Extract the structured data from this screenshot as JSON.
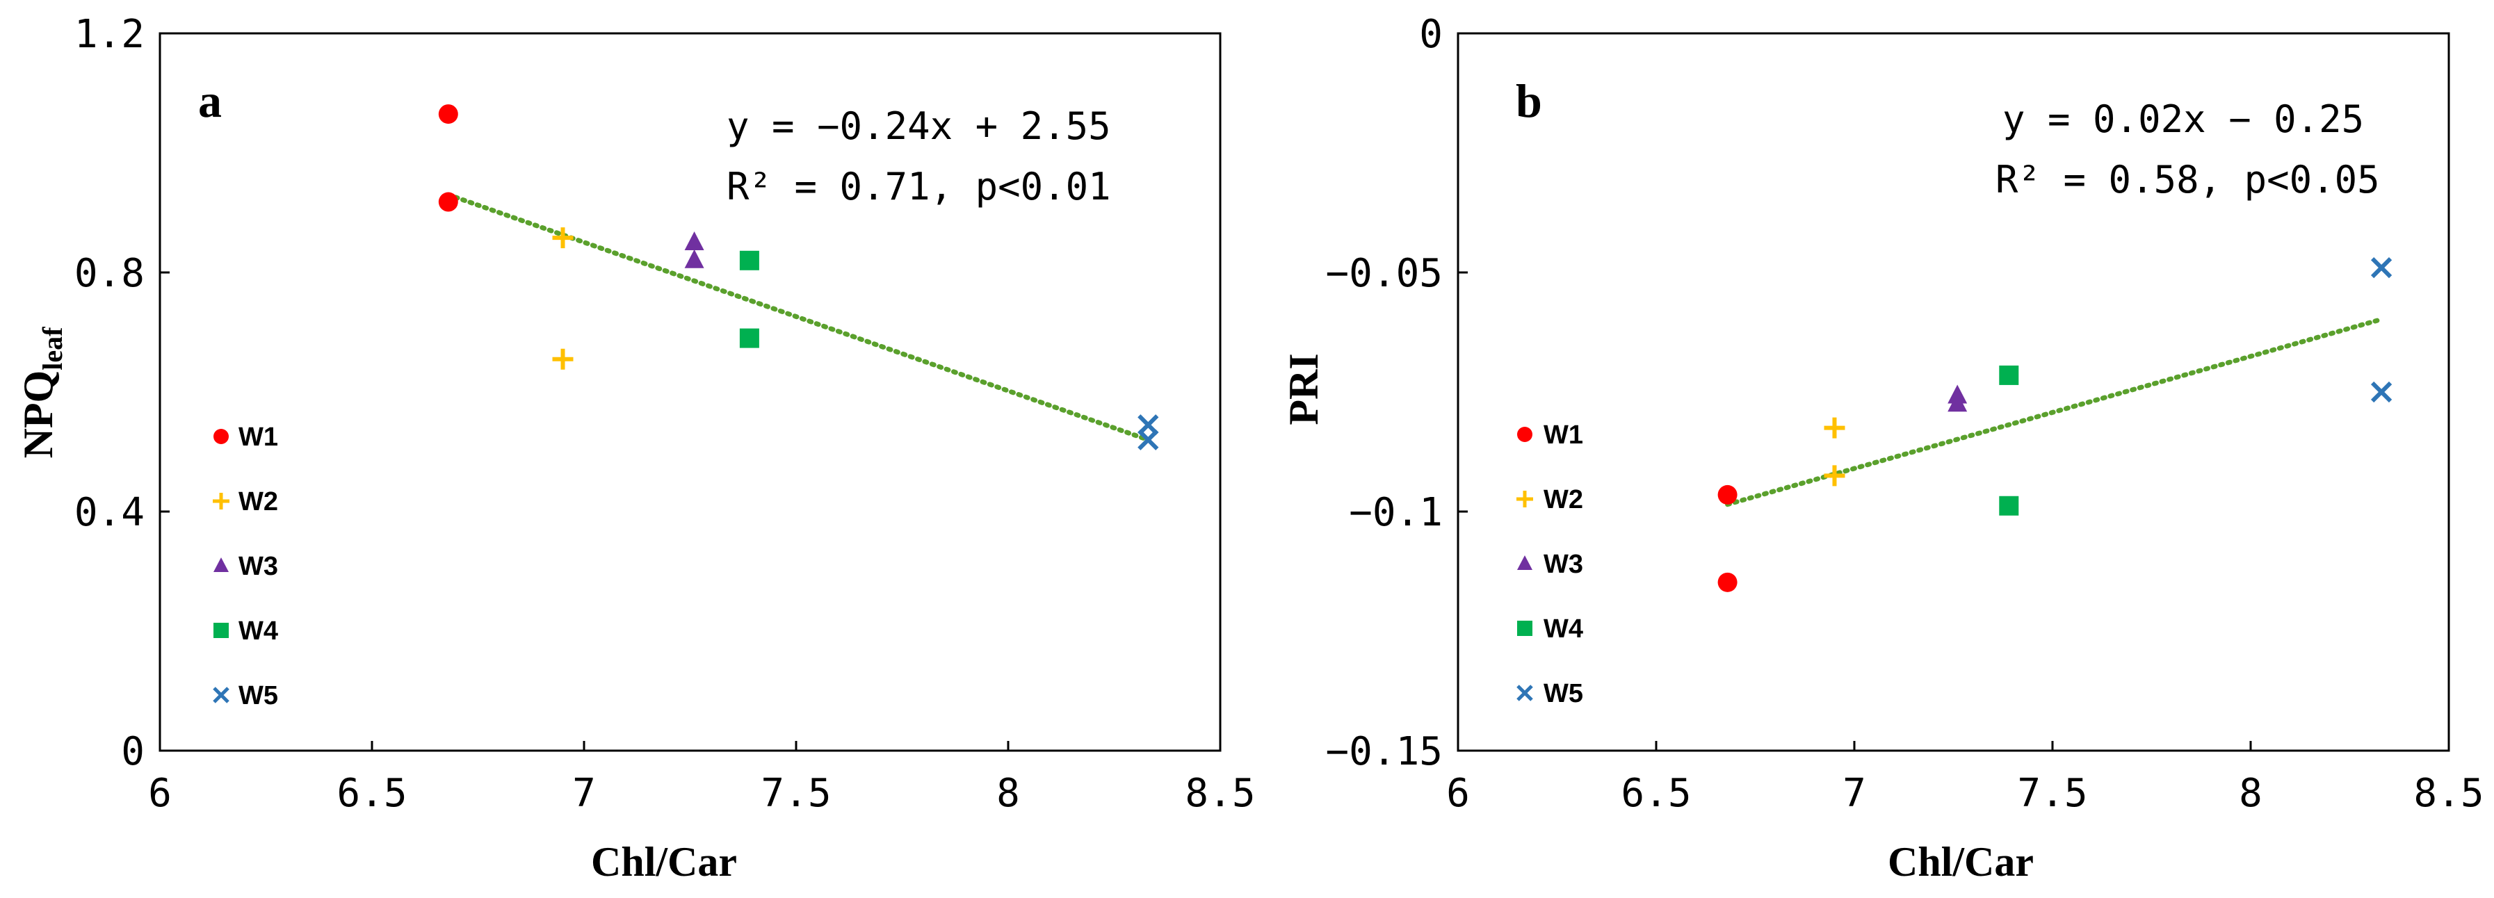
{
  "chart_data": [
    {
      "type": "scatter",
      "panel_label": "a",
      "xlabel": "Chl/Car",
      "ylabel": "NPQ",
      "ylabel_subscript": "leaf",
      "xlim": [
        6,
        8.5
      ],
      "ylim": [
        0,
        1.2
      ],
      "x_ticks": [
        6,
        6.5,
        7,
        7.5,
        8,
        8.5
      ],
      "x_tick_labels": [
        "6",
        "6.5",
        "7",
        "7.5",
        "8",
        "8.5"
      ],
      "y_ticks": [
        0,
        0.4,
        0.8,
        1.2
      ],
      "y_tick_labels": [
        "0",
        "0.4",
        "0.8",
        "1.2"
      ],
      "equation": "y = −0.24x + 2.55",
      "stats": "R² = 0.71, p<0.01",
      "trendline": {
        "x": [
          6.68,
          8.33
        ],
        "y": [
          0.93,
          0.52
        ]
      },
      "legend_position": "left",
      "series": [
        {
          "name": "W1",
          "marker": "circle",
          "color": "#ff0000",
          "x": [
            6.68,
            6.68
          ],
          "y": [
            1.065,
            0.918
          ]
        },
        {
          "name": "W2",
          "marker": "plus",
          "color": "#ffc000",
          "x": [
            6.95,
            6.95
          ],
          "y": [
            0.858,
            0.655
          ]
        },
        {
          "name": "W3",
          "marker": "triangle",
          "color": "#7030a0",
          "x": [
            7.26,
            7.26
          ],
          "y": [
            0.85,
            0.82
          ]
        },
        {
          "name": "W4",
          "marker": "square",
          "color": "#00b050",
          "x": [
            7.39,
            7.39
          ],
          "y": [
            0.82,
            0.69
          ]
        },
        {
          "name": "W5",
          "marker": "x",
          "color": "#2e75b6",
          "x": [
            8.33,
            8.33
          ],
          "y": [
            0.545,
            0.52
          ]
        }
      ]
    },
    {
      "type": "scatter",
      "panel_label": "b",
      "xlabel": "Chl/Car",
      "ylabel": "PRI",
      "ylabel_subscript": "",
      "xlim": [
        6,
        8.5
      ],
      "ylim": [
        -0.15,
        0
      ],
      "x_ticks": [
        6,
        6.5,
        7,
        7.5,
        8,
        8.5
      ],
      "x_tick_labels": [
        "6",
        "6.5",
        "7",
        "7.5",
        "8",
        "8.5"
      ],
      "y_ticks": [
        -0.15,
        -0.1,
        -0.05,
        0
      ],
      "y_tick_labels": [
        "−0.15",
        "−0.1",
        "−0.05",
        "0"
      ],
      "equation": "y = 0.02x − 0.25",
      "stats": "R² = 0.58, p<0.05",
      "trendline": {
        "x": [
          6.68,
          8.33
        ],
        "y": [
          -0.0985,
          -0.0598
        ]
      },
      "legend_position": "left",
      "series": [
        {
          "name": "W1",
          "marker": "circle",
          "color": "#ff0000",
          "x": [
            6.68,
            6.68
          ],
          "y": [
            -0.0965,
            -0.1148
          ]
        },
        {
          "name": "W2",
          "marker": "plus",
          "color": "#ffc000",
          "x": [
            6.95,
            6.95
          ],
          "y": [
            -0.0825,
            -0.0925
          ]
        },
        {
          "name": "W3",
          "marker": "triangle",
          "color": "#7030a0",
          "x": [
            7.26,
            7.26
          ],
          "y": [
            -0.0758,
            -0.0775
          ]
        },
        {
          "name": "W4",
          "marker": "square",
          "color": "#00b050",
          "x": [
            7.39,
            7.39
          ],
          "y": [
            -0.0715,
            -0.0988
          ]
        },
        {
          "name": "W5",
          "marker": "x",
          "color": "#2e75b6",
          "x": [
            8.33,
            8.33
          ],
          "y": [
            -0.049,
            -0.075
          ]
        }
      ]
    }
  ],
  "trendline_color": "#5aa02c"
}
